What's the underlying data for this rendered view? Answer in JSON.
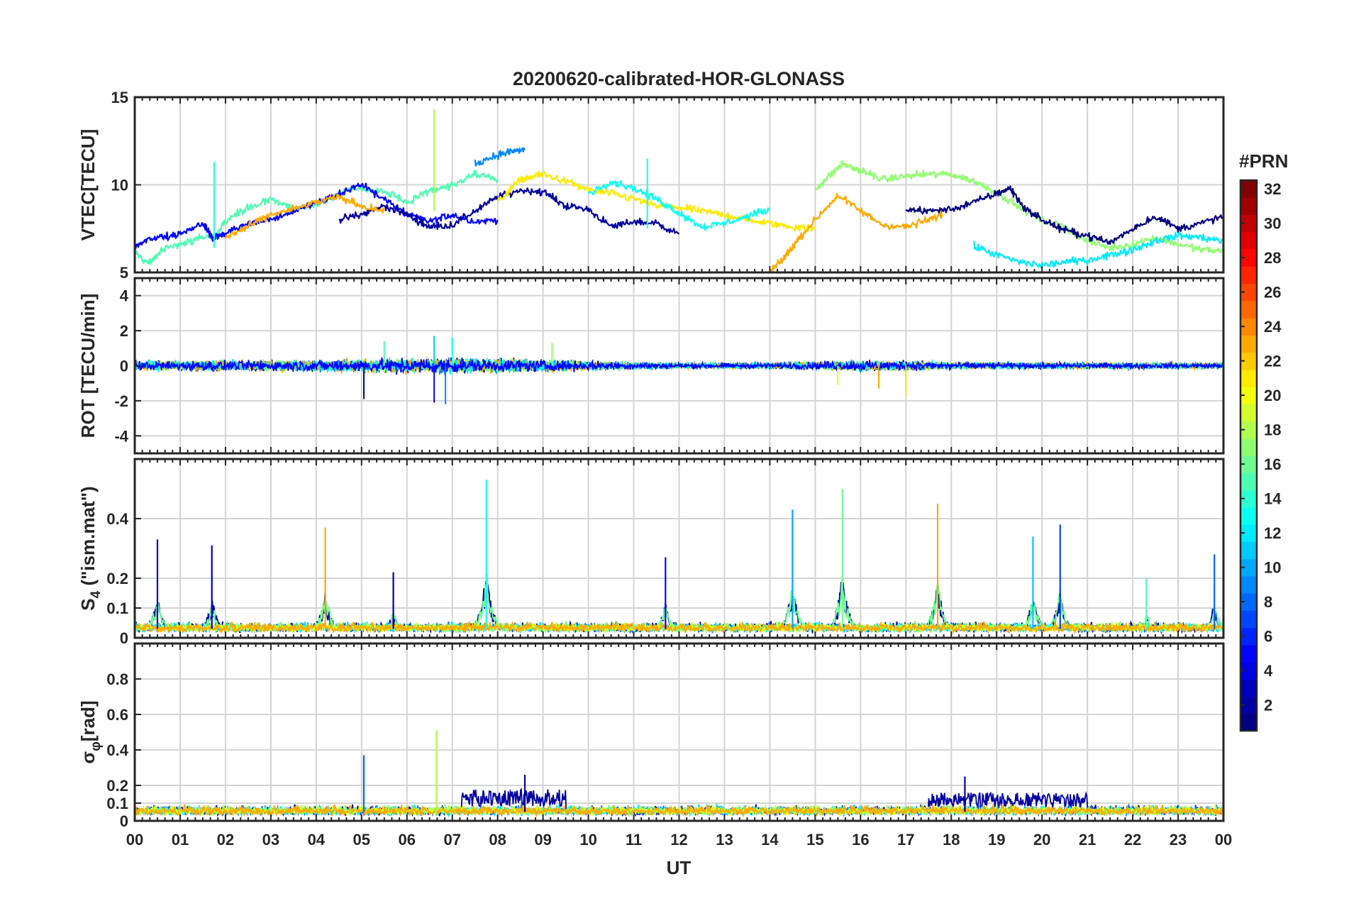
{
  "chart_data": {
    "type": "line",
    "title": "20200620-calibrated-HOR-GLONASS",
    "xlabel": "UT",
    "x_unit": "hours",
    "xlim": [
      0,
      24
    ],
    "x_tick_labels": [
      "00",
      "01",
      "02",
      "03",
      "04",
      "05",
      "06",
      "07",
      "08",
      "09",
      "10",
      "11",
      "12",
      "13",
      "14",
      "15",
      "16",
      "17",
      "18",
      "19",
      "20",
      "21",
      "22",
      "23",
      "00"
    ],
    "grid": true,
    "colorbar": {
      "label": "#PRN",
      "range": [
        1,
        32
      ],
      "ticks": [
        "2",
        "4",
        "6",
        "8",
        "10",
        "12",
        "14",
        "16",
        "18",
        "20",
        "22",
        "24",
        "26",
        "28",
        "30",
        "32"
      ],
      "colormap": "jet",
      "placement": "right"
    },
    "panels": [
      {
        "name": "vtec",
        "ylabel": "VTEC[TECU]",
        "ylim": [
          5,
          15
        ],
        "y_ticks": [
          5,
          10,
          15
        ],
        "series": [
          {
            "prn": 15,
            "t": [
              0.0,
              0.3,
              0.6,
              1.0,
              1.5,
              1.8,
              2.0,
              2.5,
              3.0,
              3.5,
              4.0,
              4.5,
              5.0,
              5.5,
              6.0,
              6.5,
              7.0,
              7.5,
              8.0
            ],
            "v": [
              6.2,
              5.5,
              6.3,
              6.6,
              7.0,
              7.1,
              8.0,
              8.7,
              9.2,
              8.6,
              8.9,
              9.5,
              9.8,
              9.6,
              9.0,
              9.6,
              10.0,
              10.6,
              10.3
            ]
          },
          {
            "prn": 5,
            "t": [
              0.0,
              0.5,
              1.0,
              1.5,
              1.7,
              2.0,
              2.5,
              3.0,
              3.5,
              4.0,
              4.5,
              5.0,
              5.5,
              6.0,
              6.5,
              7.0,
              7.5,
              8.0
            ],
            "v": [
              6.5,
              7.0,
              7.2,
              7.8,
              7.0,
              7.2,
              7.8,
              8.0,
              8.5,
              9.0,
              9.5,
              10.0,
              9.2,
              8.3,
              7.9,
              8.3,
              7.9,
              8.0
            ]
          },
          {
            "prn": 2,
            "t": [
              4.5,
              5.0,
              5.5,
              6.0,
              6.5,
              7.0,
              7.5,
              8.0,
              8.5,
              9.0,
              9.5,
              10.0,
              10.5,
              11.0,
              11.5,
              12.0
            ],
            "v": [
              8.0,
              8.3,
              8.8,
              8.3,
              7.6,
              7.7,
              8.5,
              9.3,
              9.7,
              9.6,
              8.8,
              8.6,
              7.6,
              7.9,
              7.8,
              7.2
            ]
          },
          {
            "prn": 21,
            "t": [
              8.0,
              8.5,
              9.0,
              9.5,
              10.0,
              10.5,
              11.0,
              11.5,
              12.0,
              12.5,
              13.0,
              13.5,
              14.0,
              14.5,
              15.0
            ],
            "v": [
              9.0,
              10.3,
              10.6,
              10.2,
              9.7,
              9.5,
              9.2,
              8.8,
              8.7,
              8.5,
              8.3,
              8.0,
              7.8,
              7.6,
              7.5
            ]
          },
          {
            "prn": 17,
            "t": [
              15.0,
              15.3,
              15.6,
              16.0,
              16.5,
              17.0,
              17.5,
              18.0,
              18.5,
              19.0,
              19.5,
              20.0,
              20.5,
              21.0,
              21.5,
              22.0,
              22.5,
              23.0,
              23.5,
              24.0
            ],
            "v": [
              9.7,
              10.5,
              11.2,
              10.8,
              10.3,
              10.5,
              10.6,
              10.6,
              10.2,
              9.6,
              8.7,
              8.0,
              7.6,
              6.8,
              6.4,
              6.6,
              7.0,
              6.6,
              6.3,
              6.2
            ]
          },
          {
            "prn": 1,
            "t": [
              17.0,
              17.5,
              18.0,
              18.5,
              19.0,
              19.3,
              19.6,
              20.0,
              20.5,
              21.0,
              21.5,
              22.0,
              22.5,
              23.0,
              23.5,
              24.0
            ],
            "v": [
              8.6,
              8.5,
              8.6,
              9.0,
              9.5,
              9.8,
              8.7,
              8.0,
              7.4,
              7.1,
              6.7,
              7.5,
              8.2,
              7.5,
              7.8,
              8.2
            ]
          },
          {
            "prn": 23,
            "t": [
              14.0,
              14.3,
              14.6,
              15.0,
              15.5,
              16.0,
              16.5,
              17.0,
              17.5,
              17.8
            ],
            "v": [
              5.0,
              5.8,
              6.8,
              8.0,
              9.4,
              8.5,
              7.7,
              7.6,
              8.0,
              8.3
            ]
          },
          {
            "prn": 13,
            "t": [
              10.0,
              10.5,
              11.0,
              11.5,
              12.0,
              12.5,
              13.0,
              13.5,
              14.0
            ],
            "v": [
              9.5,
              10.2,
              9.8,
              9.2,
              8.4,
              7.6,
              7.8,
              8.2,
              8.6
            ]
          },
          {
            "prn": 9,
            "t": [
              7.5,
              8.0,
              8.3,
              8.6
            ],
            "v": [
              11.2,
              11.7,
              11.9,
              12.0
            ]
          },
          {
            "prn": 23,
            "t": [
              2.0,
              2.5,
              3.0,
              3.5,
              4.0,
              4.5,
              5.0,
              5.5
            ],
            "v": [
              7.0,
              7.6,
              8.3,
              8.6,
              9.0,
              9.3,
              8.8,
              8.5
            ]
          },
          {
            "prn": 12,
            "t": [
              18.5,
              19.0,
              19.5,
              20.0,
              20.5,
              21.0,
              21.5,
              22.0,
              22.5,
              23.0,
              23.5,
              24.0
            ],
            "v": [
              6.5,
              6.0,
              5.6,
              5.4,
              5.6,
              5.7,
              6.0,
              6.3,
              6.8,
              7.1,
              7.0,
              6.8
            ]
          }
        ]
      },
      {
        "name": "rot",
        "ylabel": "ROT [TECU/min]",
        "ylim": [
          -5,
          5
        ],
        "y_ticks": [
          -4,
          -2,
          0,
          2,
          4
        ],
        "noise_band_std": [
          {
            "t": [
              0,
              4,
              5,
              6,
              7,
              8,
              9,
              10,
              11,
              12,
              14,
              15,
              16,
              17,
              18,
              19,
              20,
              22,
              24
            ],
            "std": [
              0.22,
              0.25,
              0.3,
              0.32,
              0.35,
              0.3,
              0.28,
              0.22,
              0.16,
              0.12,
              0.12,
              0.18,
              0.24,
              0.22,
              0.15,
              0.14,
              0.13,
              0.13,
              0.12
            ]
          }
        ],
        "spikes": [
          [
            5.05,
            -1.9
          ],
          [
            6.6,
            -2.1
          ],
          [
            6.85,
            -2.2
          ],
          [
            6.6,
            1.7
          ],
          [
            7.0,
            1.6
          ],
          [
            5.5,
            1.4
          ],
          [
            9.2,
            1.3
          ],
          [
            15.5,
            -1.1
          ],
          [
            17.0,
            -1.7
          ],
          [
            16.4,
            -1.3
          ]
        ]
      },
      {
        "name": "s4",
        "ylabel": "S4 (\"ism.mat\")",
        "ylabel_main": "S",
        "ylabel_sub": "4",
        "ylabel_rest": " (\"ism.mat\")",
        "ylim": [
          0,
          0.6
        ],
        "y_ticks": [
          0,
          0.1,
          0.2,
          0.4
        ],
        "y_tick_labels": [
          "0",
          "0.1",
          "0.2",
          "0.4"
        ],
        "baseline": 0.03,
        "peaks": [
          {
            "t": 0.5,
            "h": 0.33,
            "prn": 3
          },
          {
            "t": 1.7,
            "h": 0.31,
            "prn": 3
          },
          {
            "t": 4.2,
            "h": 0.37,
            "prn": 23
          },
          {
            "t": 5.7,
            "h": 0.22,
            "prn": 2
          },
          {
            "t": 7.75,
            "h": 0.53,
            "prn": 13
          },
          {
            "t": 11.7,
            "h": 0.27,
            "prn": 5
          },
          {
            "t": 14.5,
            "h": 0.43,
            "prn": 10
          },
          {
            "t": 15.6,
            "h": 0.5,
            "prn": 16
          },
          {
            "t": 17.7,
            "h": 0.45,
            "prn": 23
          },
          {
            "t": 19.8,
            "h": 0.34,
            "prn": 11
          },
          {
            "t": 20.4,
            "h": 0.38,
            "prn": 7
          },
          {
            "t": 22.3,
            "h": 0.2,
            "prn": 15
          },
          {
            "t": 23.8,
            "h": 0.28,
            "prn": 8
          }
        ]
      },
      {
        "name": "sigma_phi",
        "ylabel": "σφ[rad]",
        "ylabel_main": "σ",
        "ylabel_sub": "φ",
        "ylabel_rest": "[rad]",
        "ylim": [
          0,
          1.0
        ],
        "y_ticks": [
          0,
          0.1,
          0.2,
          0.4,
          0.6,
          0.8
        ],
        "y_tick_labels": [
          "0",
          "0.1",
          "0.2",
          "0.4",
          "0.6",
          "0.8"
        ],
        "baseline": 0.05,
        "peaks": [
          {
            "t": 5.05,
            "h": 0.37,
            "prn": 8
          },
          {
            "t": 6.65,
            "h": 0.51,
            "prn": 18
          },
          {
            "t": 8.6,
            "h": 0.26,
            "prn": 2
          },
          {
            "t": 18.3,
            "h": 0.25,
            "prn": 2
          }
        ],
        "elevated": [
          [
            7.2,
            9.5,
            0.18,
            2
          ],
          [
            17.5,
            21.0,
            0.16,
            2
          ]
        ]
      }
    ]
  }
}
